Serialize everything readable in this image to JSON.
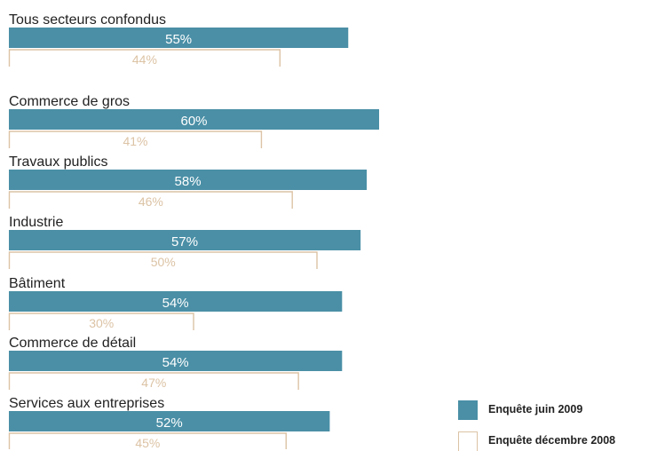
{
  "chart_data": {
    "type": "bar",
    "orientation": "horizontal",
    "series": [
      {
        "name": "Enquête juin 2009",
        "color": "#4a8fa6",
        "values": [
          55,
          60,
          58,
          57,
          54,
          54,
          52
        ]
      },
      {
        "name": "Enquête décembre 2008",
        "color": "#dcc3a5",
        "values": [
          44,
          41,
          46,
          50,
          30,
          47,
          45
        ]
      }
    ],
    "categories": [
      "Tous secteurs confondus",
      "Commerce de gros",
      "Travaux publics",
      "Industrie",
      "Bâtiment",
      "Commerce de détail",
      "Services aux entreprises"
    ],
    "value_labels": {
      "juin_2009": [
        "55%",
        "60%",
        "58%",
        "57%",
        "54%",
        "54%",
        "52%"
      ],
      "decembre_2008": [
        "44%",
        "41%",
        "46%",
        "50%",
        "30%",
        "47%",
        "45%"
      ]
    },
    "unit": "%",
    "legend_position": "bottom-right"
  }
}
